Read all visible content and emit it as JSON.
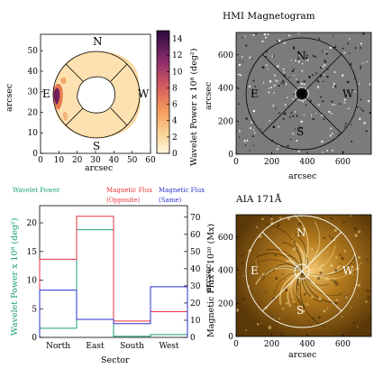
{
  "colors": {
    "wavelet": "#1a9e78",
    "flux_opposite": "#e8333b",
    "flux_same": "#2d2fd0",
    "axis": "#000000"
  },
  "panels": {
    "wavelet_map": {
      "xlabel": "arcsec",
      "ylabel": "arcsec",
      "colorbar_label": "Wavelet Power x 10⁸ (deg²)",
      "colorbar_ticks": [
        "0",
        "2",
        "4",
        "6",
        "8",
        "10",
        "12",
        "14"
      ],
      "xticks": [
        "0",
        "10",
        "20",
        "30",
        "40",
        "50",
        "60"
      ],
      "yticks": [
        "0",
        "10",
        "20",
        "30",
        "40",
        "50"
      ],
      "directions": {
        "n": "N",
        "e": "E",
        "s": "S",
        "w": "W"
      }
    },
    "hmi": {
      "title": "HMI Magnetogram",
      "xlabel": "arcsec",
      "ylabel": "arcsec",
      "xticks": [
        "0",
        "200",
        "400",
        "600"
      ],
      "yticks": [
        "0",
        "200",
        "400",
        "600"
      ],
      "directions": {
        "n": "N",
        "e": "E",
        "s": "S",
        "w": "W"
      }
    },
    "aia": {
      "title": "AIA 171Å",
      "xlabel": "arcsec",
      "ylabel": "arcsec",
      "xticks": [
        "0",
        "200",
        "400",
        "600"
      ],
      "yticks": [
        "0",
        "200",
        "400",
        "600"
      ],
      "directions": {
        "n": "N",
        "e": "E",
        "s": "S",
        "w": "W"
      }
    }
  },
  "chart_data": {
    "type": "line",
    "subtype": "step",
    "categories": [
      "North",
      "East",
      "South",
      "West"
    ],
    "xlabel": "Sector",
    "ylabel_left": "Wavelet Power x 10⁸ (deg²)",
    "ylabel_right": "Magnetic Flux x 10²⁰ (Mx)",
    "ylim_left": [
      0,
      23
    ],
    "ylim_right": [
      0,
      76.7
    ],
    "yticks_left": [
      0,
      5,
      10,
      15,
      20
    ],
    "yticks_right": [
      0,
      10,
      20,
      30,
      40,
      50,
      60,
      70
    ],
    "legend": {
      "wavelet": "Wavelet Power",
      "opposite": [
        "Magnetic Flux",
        "(Opposite)"
      ],
      "same": [
        "Magnetic Flux",
        "(Same)"
      ]
    },
    "series": [
      {
        "name": "Wavelet Power",
        "axis": "left",
        "values": [
          1.6,
          18.8,
          0.2,
          0.5
        ]
      },
      {
        "name": "Magnetic Flux (Opposite)",
        "axis": "right",
        "values": [
          45.5,
          70.5,
          9.5,
          15.0
        ]
      },
      {
        "name": "Magnetic Flux (Same)",
        "axis": "right",
        "values": [
          27.5,
          10.5,
          8.0,
          29.5
        ]
      }
    ]
  }
}
